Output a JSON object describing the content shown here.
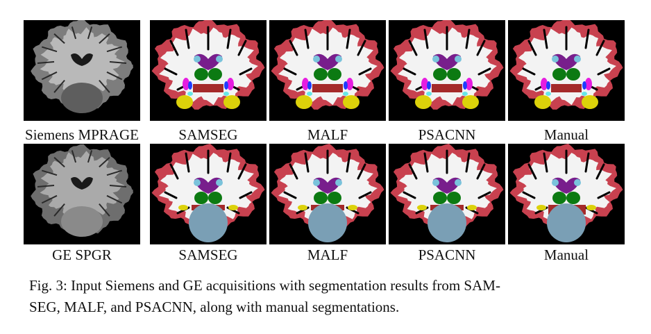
{
  "figure": {
    "rows": [
      {
        "input": "Siemens MPRAGE",
        "panels": [
          {
            "label": "SAMSEG",
            "variant": "siemens"
          },
          {
            "label": "MALF",
            "variant": "siemens"
          },
          {
            "label": "PSACNN",
            "variant": "siemens"
          },
          {
            "label": "Manual",
            "variant": "siemens"
          }
        ]
      },
      {
        "input": "GE SPGR",
        "panels": [
          {
            "label": "SAMSEG",
            "variant": "ge"
          },
          {
            "label": "MALF",
            "variant": "ge"
          },
          {
            "label": "PSACNN",
            "variant": "ge"
          },
          {
            "label": "Manual",
            "variant": "ge-manual"
          }
        ]
      }
    ],
    "caption": "Fig. 3: Input Siemens and GE acquisitions with segmentation results from SAM-SEG, MALF, and PSACNN, along with manual segmentations.",
    "caption_lines": [
      "Fig. 3: Input Siemens and GE acquisitions with segmentation results from SAM-",
      "SEG, MALF, and PSACNN, along with manual segmentations."
    ],
    "colors": {
      "cortex": "#c8414f",
      "white_matter": "#f3f3f3",
      "thalamus": "#0c7a12",
      "ventricle": "#781e8c",
      "caudate": "#7ac3db",
      "putamen": "#e61de0",
      "pallidum": "#1f3cff",
      "hippocampus": "#dcd20a",
      "amygdala": "#66e6e6",
      "brainstem": "#7a9fb5",
      "ventral_dc": "#a52a2a",
      "background": "#000000"
    }
  }
}
